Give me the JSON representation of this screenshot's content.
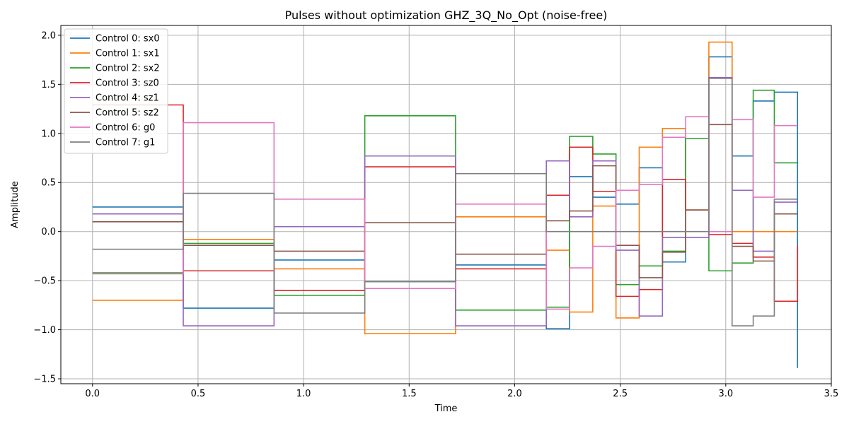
{
  "chart_data": {
    "type": "line",
    "title": "Pulses without optimization GHZ_3Q_No_Opt (noise-free)",
    "xlabel": "Time",
    "ylabel": "Amplitude",
    "xlim": [
      -0.15,
      3.5
    ],
    "ylim": [
      -1.55,
      2.1
    ],
    "xticks": [
      0.0,
      0.5,
      1.0,
      1.5,
      2.0,
      2.5,
      3.0,
      3.5
    ],
    "xtick_labels": [
      "0.0",
      "0.5",
      "1.0",
      "1.5",
      "2.0",
      "2.5",
      "3.0",
      "3.5"
    ],
    "yticks": [
      -1.5,
      -1.0,
      -0.5,
      0.0,
      0.5,
      1.0,
      1.5,
      2.0
    ],
    "ytick_labels": [
      "−1.5",
      "−1.0",
      "−0.5",
      "0.0",
      "0.5",
      "1.0",
      "1.5",
      "2.0"
    ],
    "grid": true,
    "legend_position": "top-left",
    "step_style": "post",
    "x": [
      0.0,
      0.43,
      0.86,
      1.29,
      1.72,
      2.15,
      2.26,
      2.37,
      2.48,
      2.59,
      2.7,
      2.81,
      2.92,
      3.03,
      3.13,
      3.23,
      3.34
    ],
    "series": [
      {
        "name": "Control 0: sx0",
        "color": "#1f77b4",
        "values": [
          0.25,
          -0.78,
          -0.29,
          -0.51,
          -0.34,
          -0.99,
          0.56,
          0.35,
          0.28,
          0.65,
          -0.31,
          0.95,
          1.78,
          0.77,
          1.33,
          1.42,
          -1.39
        ]
      },
      {
        "name": "Control 1: sx1",
        "color": "#ff7f0e",
        "values": [
          -0.7,
          -0.08,
          -0.38,
          -1.04,
          0.15,
          -0.19,
          -0.82,
          0.26,
          -0.88,
          0.86,
          1.05,
          0.22,
          1.93,
          0.0,
          0.0,
          0.0,
          0.0
        ]
      },
      {
        "name": "Control 2: sx2",
        "color": "#2ca02c",
        "values": [
          -0.42,
          -0.12,
          -0.65,
          1.18,
          -0.8,
          -0.77,
          0.97,
          0.79,
          -0.54,
          -0.35,
          -0.2,
          0.95,
          -0.4,
          -0.32,
          1.44,
          0.7,
          0.7
        ]
      },
      {
        "name": "Control 3: sz0",
        "color": "#d62728",
        "values": [
          1.29,
          -0.4,
          -0.6,
          0.66,
          -0.38,
          0.37,
          0.86,
          0.41,
          -0.66,
          -0.59,
          0.53,
          0.22,
          -0.03,
          -0.12,
          -0.26,
          -0.71,
          -0.14
        ]
      },
      {
        "name": "Control 4: sz1",
        "color": "#9467bd",
        "values": [
          0.18,
          -0.96,
          0.05,
          0.77,
          -0.96,
          0.72,
          0.15,
          0.72,
          -0.19,
          -0.86,
          -0.06,
          -0.06,
          1.57,
          0.42,
          -0.2,
          0.3,
          0.3
        ]
      },
      {
        "name": "Control 5: sz2",
        "color": "#8c564b",
        "values": [
          0.1,
          -0.14,
          -0.2,
          0.09,
          -0.23,
          0.11,
          0.21,
          0.67,
          -0.14,
          -0.47,
          -0.21,
          0.22,
          1.09,
          -0.15,
          -0.3,
          0.18,
          0.18
        ]
      },
      {
        "name": "Control 6: g0",
        "color": "#e377c2",
        "values": [
          -0.43,
          1.11,
          0.33,
          -0.58,
          0.28,
          -0.79,
          -0.37,
          -0.15,
          0.42,
          0.48,
          0.96,
          1.17,
          0.0,
          1.14,
          0.35,
          1.08,
          1.08
        ]
      },
      {
        "name": "Control 7: g1",
        "color": "#7f7f7f",
        "values": [
          -0.18,
          0.39,
          -0.83,
          -0.51,
          0.59,
          0.0,
          0.0,
          0.0,
          0.0,
          0.0,
          0.0,
          0.0,
          1.56,
          -0.96,
          -0.86,
          0.33,
          0.33
        ]
      }
    ]
  }
}
